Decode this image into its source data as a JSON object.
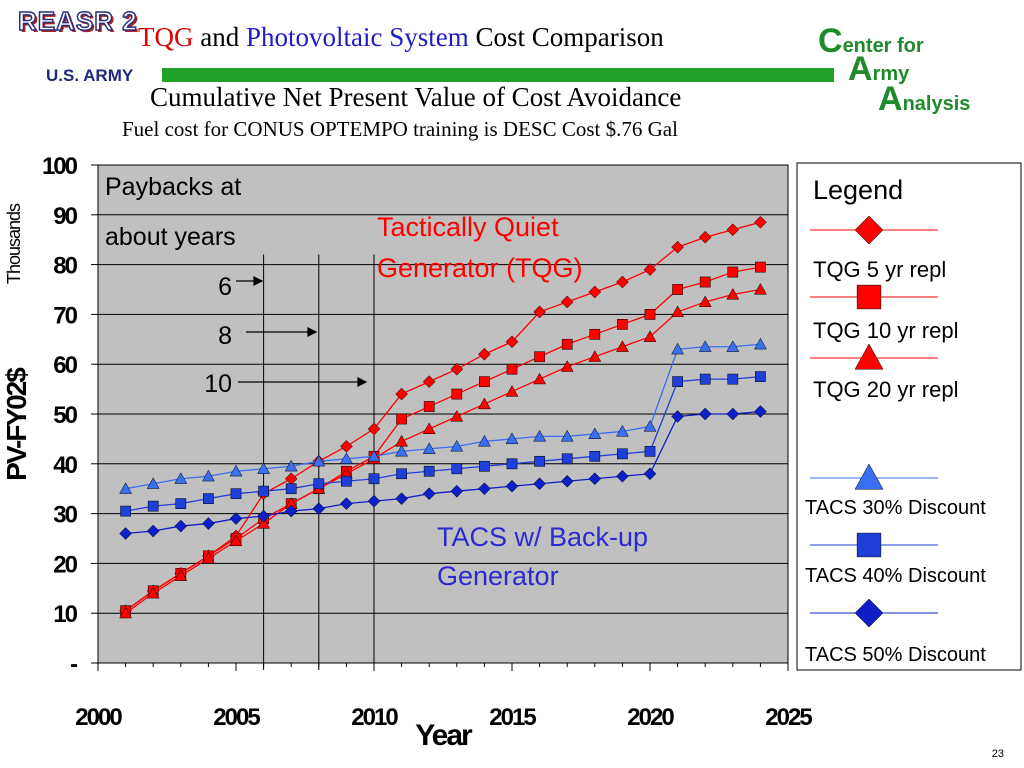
{
  "header": {
    "logo_text": "REASR 2",
    "org_left": "U.S. ARMY",
    "title_part1": "TQG",
    "title_part2": " and ",
    "title_part3": "Photovoltaic System",
    "title_part4": " Cost Comparison",
    "subtitle": "Cumulative Net Present Value of Cost Avoidance",
    "note": "Fuel cost for CONUS OPTEMPO training is DESC Cost $.76 Gal",
    "org_right_line1_initial": "C",
    "org_right_line1_rest": "enter for",
    "org_right_line2_initial": "A",
    "org_right_line2_rest": "rmy",
    "org_right_line3_initial": "A",
    "org_right_line3_rest": "nalysis",
    "page_number": "23",
    "colors": {
      "brand_green": "#1fa12a",
      "title_red": "#e00000",
      "title_blue": "#1d1dc8"
    }
  },
  "chart_data": {
    "type": "line",
    "xlabel": "Year",
    "ylabel": "PV-FY02$",
    "yunit_label": "Thousands",
    "xlim": [
      2000,
      2025
    ],
    "ylim": [
      0,
      100
    ],
    "xticks": [
      "2000",
      "2005",
      "2010",
      "2015",
      "2020",
      "2025"
    ],
    "yticks": [
      "-",
      "10",
      "20",
      "30",
      "40",
      "50",
      "60",
      "70",
      "80",
      "90",
      "100"
    ],
    "grid": true,
    "plot_background": "#c0c0c0",
    "x": [
      2001,
      2002,
      2003,
      2004,
      2005,
      2006,
      2007,
      2008,
      2009,
      2010,
      2011,
      2012,
      2013,
      2014,
      2015,
      2016,
      2017,
      2018,
      2019,
      2020,
      2021,
      2022,
      2023,
      2024
    ],
    "series": [
      {
        "name": "TQG 5 yr repl",
        "color": "#ff0000",
        "marker": "diamond",
        "values": [
          10.5,
          14.5,
          18,
          21.5,
          25.5,
          34,
          37,
          40.5,
          43.5,
          47,
          54,
          56.5,
          59,
          62,
          64.5,
          70.5,
          72.5,
          74.5,
          76.5,
          79,
          83.5,
          85.5,
          87,
          88.5
        ]
      },
      {
        "name": "TQG 10 yr repl",
        "color": "#ff0000",
        "marker": "square",
        "values": [
          10.5,
          14.5,
          18,
          21.5,
          25,
          29,
          32,
          35,
          38.5,
          41.5,
          49,
          51.5,
          54,
          56.5,
          59,
          61.5,
          64,
          66,
          68,
          70,
          75,
          76.5,
          78.5,
          79.5
        ]
      },
      {
        "name": "TQG 20 yr repl",
        "color": "#ff0000",
        "marker": "triangle",
        "values": [
          10,
          14,
          17.5,
          21,
          24.5,
          28,
          32,
          35,
          38,
          41,
          44.5,
          47,
          49.5,
          52,
          54.5,
          57,
          59.5,
          61.5,
          63.5,
          65.5,
          70.5,
          72.5,
          74,
          75
        ]
      },
      {
        "name": "TACS 30% Discount",
        "color": "#3a6ff0",
        "marker": "triangle",
        "values": [
          35,
          36,
          37,
          37.5,
          38.5,
          39,
          39.5,
          40.5,
          41,
          41.5,
          42.5,
          43,
          43.5,
          44.5,
          45,
          45.5,
          45.5,
          46,
          46.5,
          47.5,
          63,
          63.5,
          63.5,
          64
        ]
      },
      {
        "name": "TACS 40% Discount",
        "color": "#1f3fd8",
        "marker": "square",
        "values": [
          30.5,
          31.5,
          32,
          33,
          34,
          34.5,
          35,
          36,
          36.5,
          37,
          38,
          38.5,
          39,
          39.5,
          40,
          40.5,
          41,
          41.5,
          42,
          42.5,
          56.5,
          57,
          57,
          57.5
        ]
      },
      {
        "name": "TACS 50% Discount",
        "color": "#0f1fc8",
        "marker": "diamond",
        "values": [
          26,
          26.5,
          27.5,
          28,
          29,
          29.5,
          30.5,
          31,
          32,
          32.5,
          33,
          34,
          34.5,
          35,
          35.5,
          36,
          36.5,
          37,
          37.5,
          38,
          49.5,
          50,
          50,
          50.5
        ]
      }
    ],
    "legend_title": "Legend",
    "legend_placement": "right",
    "annotations": {
      "paybacks_line1": "Paybacks at",
      "paybacks_line2": "about  years",
      "payback_years": [
        "6",
        "8",
        "10"
      ],
      "payback_vertical_lines_x": [
        2006,
        2008,
        2010
      ],
      "tqg_label_line1": "Tactically Quiet",
      "tqg_label_line2": "Generator (TQG)",
      "tacs_label_line1": "TACS w/ Back-up",
      "tacs_label_line2": "Generator",
      "tqg_label_color": "#ff0000",
      "tacs_label_color": "#2a2ad0"
    }
  }
}
